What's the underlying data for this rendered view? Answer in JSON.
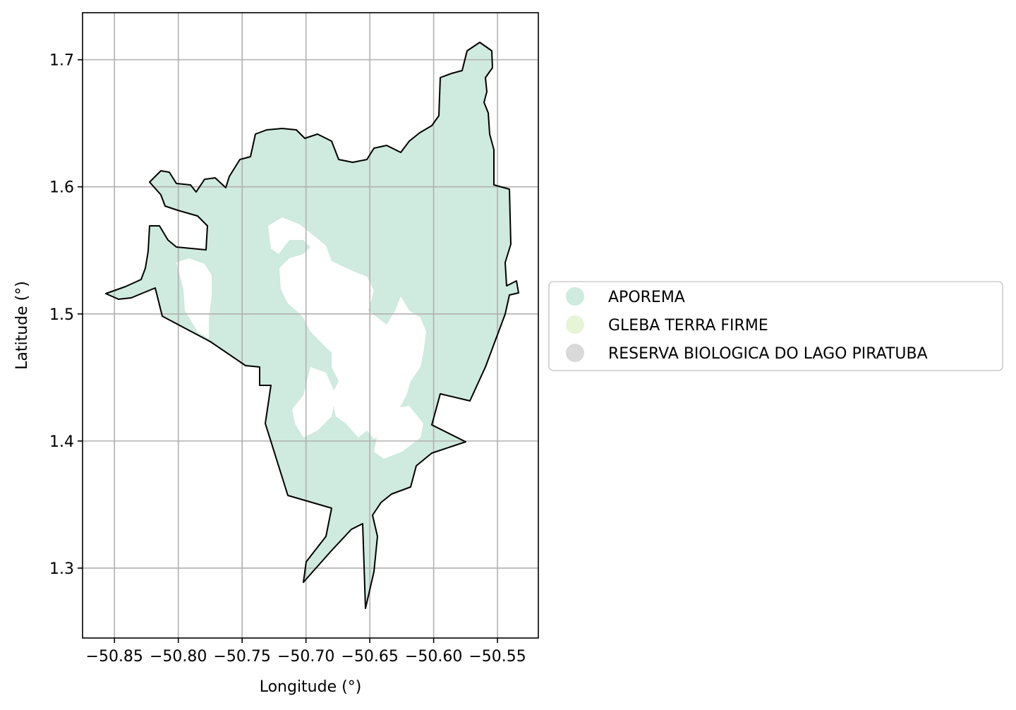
{
  "axes": {
    "xlabel": "Longitude (°)",
    "ylabel": "Latitude (°)",
    "xlim": [
      -50.875,
      -50.518
    ],
    "ylim": [
      1.245,
      1.737
    ],
    "grid": true,
    "xticks": [
      -50.85,
      -50.8,
      -50.75,
      -50.7,
      -50.65,
      -50.6,
      -50.55
    ],
    "xtick_labels": [
      "−50.85",
      "−50.80",
      "−50.75",
      "−50.70",
      "−50.65",
      "−50.60",
      "−50.55"
    ],
    "yticks": [
      1.3,
      1.4,
      1.5,
      1.6,
      1.7
    ],
    "ytick_labels": [
      "1.3",
      "1.4",
      "1.5",
      "1.6",
      "1.7"
    ]
  },
  "legend": {
    "placement": "center-left outside plot",
    "entries": [
      {
        "label": "APOREMA",
        "color": "#cfeade"
      },
      {
        "label": "GLEBA TERRA FIRME",
        "color": "#e5f5d5"
      },
      {
        "label": "RESERVA BIOLOGICA DO LAGO PIRATUBA",
        "color": "#d9d9d9"
      }
    ]
  },
  "colors": {
    "aporema_fill": "#cfeade",
    "boundary_stroke": "#000000",
    "grid": "#b0b0b0"
  }
}
